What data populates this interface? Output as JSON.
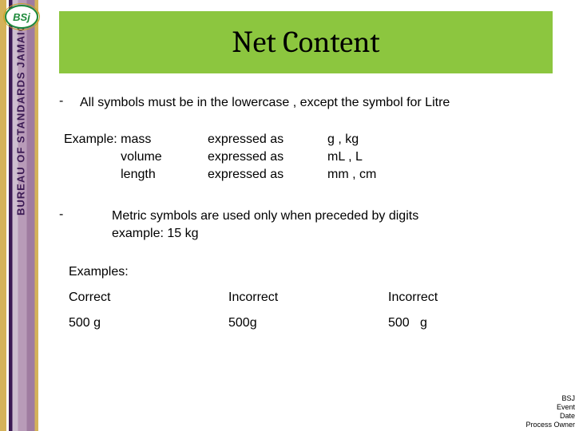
{
  "accent_green": "#8cc63f",
  "banner_purple": "#3b1a54",
  "banner_gold": "#d4b25a",
  "logo_text": "BSj",
  "left_banner_text": "BUREAU OF STANDARDS JAMAICA",
  "title": "Net Content",
  "bullets": {
    "b1": {
      "dash": "-",
      "text": "All symbols must be in the lowercase , except the symbol for Litre"
    },
    "b2": {
      "dash": "-",
      "line1": "Metric symbols are used only when preceded by digits",
      "line2": "example: 15 kg"
    }
  },
  "example": {
    "rows": [
      {
        "c1": "Example: mass",
        "c2": "expressed as",
        "c3": "g , kg"
      },
      {
        "c1": "                volume",
        "c2": "expressed as",
        "c3": "mL , L"
      },
      {
        "c1": "                length",
        "c2": "expressed as",
        "c3": "mm , cm"
      }
    ]
  },
  "examples_label": "Examples:",
  "tri": {
    "headers": [
      "Correct",
      "Incorrect",
      "Incorrect"
    ],
    "values": [
      "500 g",
      "500g",
      "500   g"
    ]
  },
  "footer": {
    "l1": "BSJ",
    "l2": "Event",
    "l3": "Date",
    "l4": "Process Owner"
  }
}
